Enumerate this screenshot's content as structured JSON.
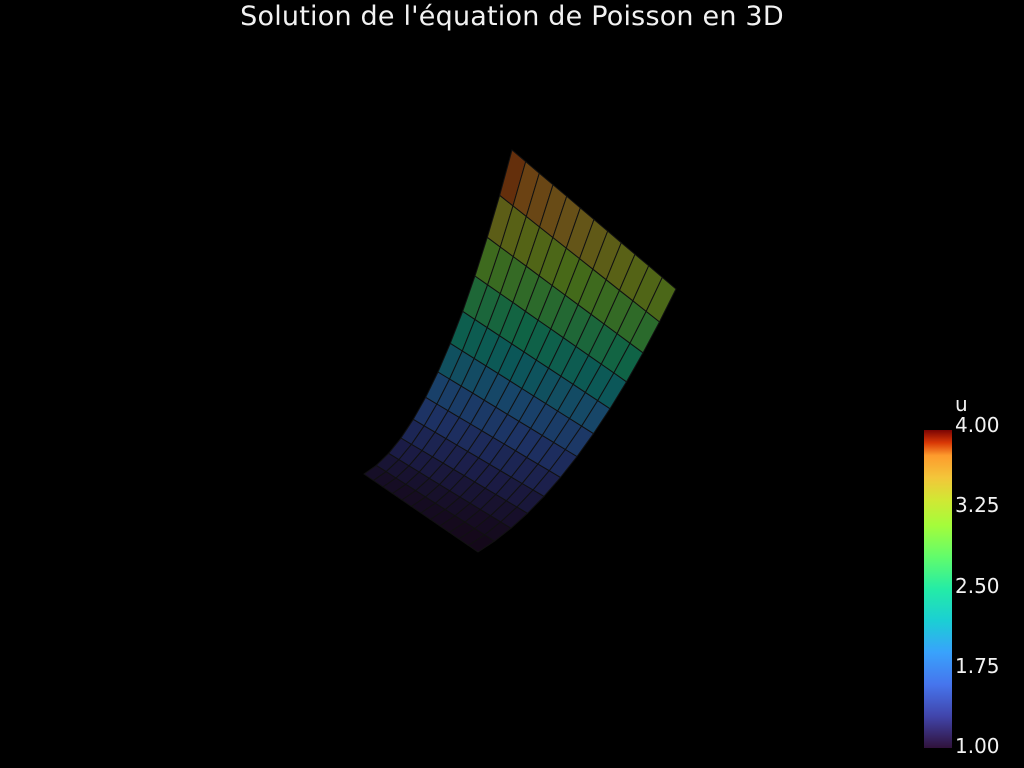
{
  "title": "Solution de l'équation de Poisson en 3D",
  "chart_data": {
    "type": "surface3d",
    "title": "Solution de l'équation de Poisson en 3D",
    "field": "u",
    "colormap": "turbo",
    "mesh_edges": true,
    "surface_opacity_look": "dim",
    "grid_divisions": [
      12,
      12
    ],
    "range": [
      1.0,
      4.0
    ],
    "colorbar": {
      "title": "u",
      "placement": "bottom-right",
      "ticks": [
        "4.00",
        "3.25",
        "2.50",
        "1.75",
        "1.00"
      ]
    }
  },
  "colors": {
    "background": "#000000",
    "text": "#f2f2f2",
    "mesh_edge": "#111111"
  }
}
